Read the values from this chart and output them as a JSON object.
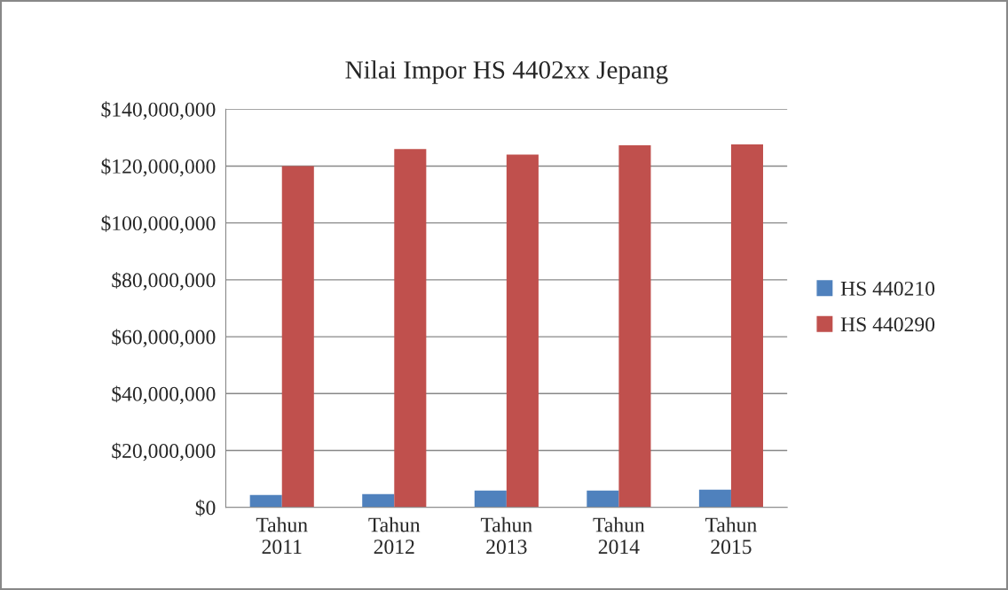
{
  "chart_data": {
    "type": "bar",
    "title": "Nilai Impor HS 4402xx Jepang",
    "categories": [
      "Tahun 2011",
      "Tahun 2012",
      "Tahun 2013",
      "Tahun 2014",
      "Tahun 2015"
    ],
    "series": [
      {
        "name": "HS 440210",
        "color": "#4f81bd",
        "values": [
          4400000,
          4700000,
          5900000,
          5900000,
          6200000
        ]
      },
      {
        "name": "HS 440290",
        "color": "#c0504d",
        "values": [
          120000000,
          126000000,
          124000000,
          127300000,
          127600000
        ]
      }
    ],
    "ylim": [
      0,
      140000000
    ],
    "yticks": [
      {
        "value": 0,
        "label": "$0"
      },
      {
        "value": 20000000,
        "label": "$20,000,000"
      },
      {
        "value": 40000000,
        "label": "$40,000,000"
      },
      {
        "value": 60000000,
        "label": "$60,000,000"
      },
      {
        "value": 80000000,
        "label": "$80,000,000"
      },
      {
        "value": 100000000,
        "label": "$100,000,000"
      },
      {
        "value": 120000000,
        "label": "$120,000,000"
      },
      {
        "value": 140000000,
        "label": "$140,000,000"
      }
    ],
    "grid": "y",
    "legend": "right"
  }
}
